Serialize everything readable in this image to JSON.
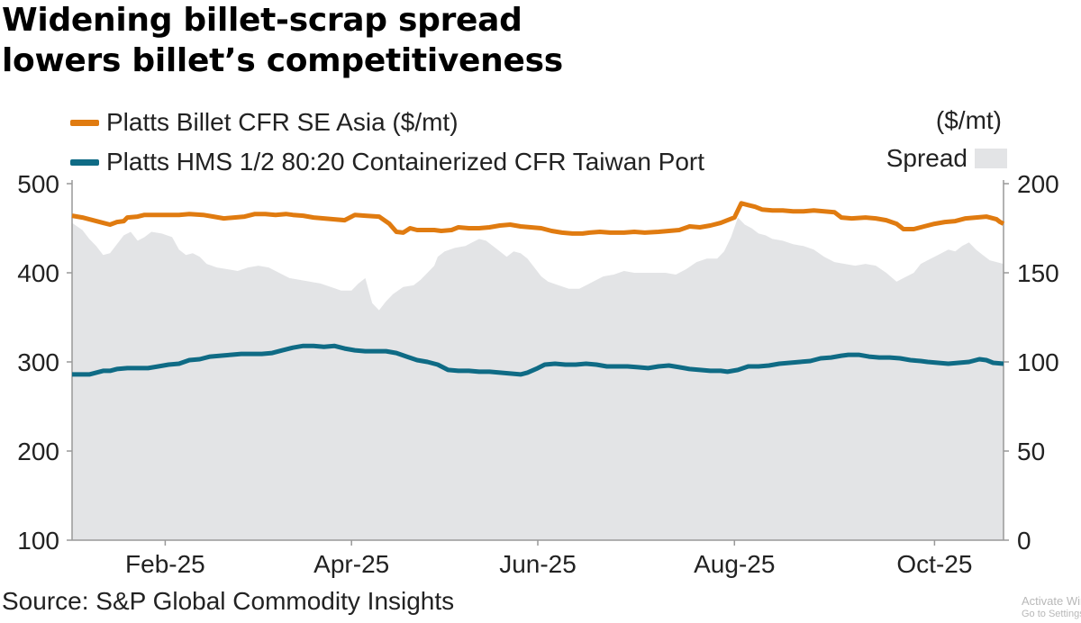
{
  "title_line1": "Widening billet-scrap spread",
  "title_line2": "lowers billet’s competitiveness",
  "legend": {
    "billet_label": "Platts Billet CFR SE Asia ($/mt)",
    "hms_label": "Platts HMS 1/2 80:20 Containerized CFR Taiwan Port",
    "spread_label": "Spread",
    "right_unit": "($/mt)"
  },
  "colors": {
    "billet": "#e07b10",
    "hms": "#0f6b85",
    "spread": "#e3e4e6",
    "axis": "#999999"
  },
  "source": "Source: S&P Global Commodity Insights",
  "watermark": {
    "line1": "Activate Windows",
    "line2": "Go to Settings to activate Windows."
  },
  "chart_data": {
    "type": "line",
    "title": "Widening billet-scrap spread lowers billet’s competitiveness",
    "x_range": [
      0,
      270
    ],
    "x_ticks": [
      {
        "x": 27,
        "label": "Feb-25"
      },
      {
        "x": 81,
        "label": "Apr-25"
      },
      {
        "x": 135,
        "label": "Jun-25"
      },
      {
        "x": 192,
        "label": "Aug-25"
      },
      {
        "x": 250,
        "label": "Oct-25"
      }
    ],
    "y_left": {
      "label": "$/mt",
      "range": [
        100,
        500
      ],
      "ticks": [
        500,
        400,
        300,
        200,
        100
      ]
    },
    "y_right": {
      "label": "($/mt)",
      "range": [
        0,
        200
      ],
      "ticks": [
        200,
        150,
        100,
        50,
        0
      ]
    },
    "series": [
      {
        "name": "Platts Billet CFR SE Asia ($/mt)",
        "kind": "line",
        "axis": "left",
        "points": [
          [
            0,
            464
          ],
          [
            3,
            462
          ],
          [
            6,
            459
          ],
          [
            9,
            456
          ],
          [
            11,
            454
          ],
          [
            13,
            457
          ],
          [
            15,
            458
          ],
          [
            16,
            462
          ],
          [
            19,
            463
          ],
          [
            21,
            465
          ],
          [
            25,
            465
          ],
          [
            31,
            465
          ],
          [
            34,
            466
          ],
          [
            38,
            465
          ],
          [
            41,
            463
          ],
          [
            44,
            461
          ],
          [
            47,
            462
          ],
          [
            50,
            463
          ],
          [
            53,
            466
          ],
          [
            56,
            466
          ],
          [
            59,
            465
          ],
          [
            62,
            466
          ],
          [
            64,
            465
          ],
          [
            67,
            464
          ],
          [
            70,
            462
          ],
          [
            73,
            461
          ],
          [
            76,
            460
          ],
          [
            79,
            459
          ],
          [
            82,
            465
          ],
          [
            85,
            464
          ],
          [
            89,
            463
          ],
          [
            92,
            455
          ],
          [
            94,
            446
          ],
          [
            96,
            445
          ],
          [
            98,
            450
          ],
          [
            100,
            448
          ],
          [
            103,
            448
          ],
          [
            105,
            448
          ],
          [
            107,
            447
          ],
          [
            110,
            448
          ],
          [
            112,
            451
          ],
          [
            115,
            450
          ],
          [
            118,
            450
          ],
          [
            121,
            451
          ],
          [
            124,
            453
          ],
          [
            127,
            454
          ],
          [
            130,
            452
          ],
          [
            133,
            451
          ],
          [
            136,
            450
          ],
          [
            139,
            447
          ],
          [
            142,
            445
          ],
          [
            145,
            444
          ],
          [
            148,
            444
          ],
          [
            150,
            445
          ],
          [
            153,
            446
          ],
          [
            156,
            445
          ],
          [
            160,
            445
          ],
          [
            163,
            446
          ],
          [
            166,
            445
          ],
          [
            170,
            446
          ],
          [
            173,
            447
          ],
          [
            176,
            448
          ],
          [
            179,
            452
          ],
          [
            182,
            451
          ],
          [
            185,
            453
          ],
          [
            188,
            456
          ],
          [
            190,
            459
          ],
          [
            192,
            462
          ],
          [
            194,
            478
          ],
          [
            196,
            476
          ],
          [
            198,
            474
          ],
          [
            200,
            471
          ],
          [
            203,
            470
          ],
          [
            206,
            470
          ],
          [
            209,
            469
          ],
          [
            212,
            469
          ],
          [
            215,
            470
          ],
          [
            218,
            469
          ],
          [
            221,
            468
          ],
          [
            223,
            462
          ],
          [
            226,
            461
          ],
          [
            230,
            462
          ],
          [
            233,
            461
          ],
          [
            236,
            459
          ],
          [
            239,
            455
          ],
          [
            241,
            449
          ],
          [
            244,
            449
          ],
          [
            247,
            452
          ],
          [
            250,
            455
          ],
          [
            253,
            457
          ],
          [
            256,
            458
          ],
          [
            259,
            461
          ],
          [
            262,
            462
          ],
          [
            265,
            463
          ],
          [
            268,
            460
          ],
          [
            269,
            457
          ],
          [
            270,
            455
          ]
        ]
      },
      {
        "name": "Platts HMS 1/2 80:20 Containerized CFR Taiwan Port",
        "kind": "line",
        "axis": "left",
        "points": [
          [
            0,
            286
          ],
          [
            3,
            286
          ],
          [
            5,
            286
          ],
          [
            7,
            288
          ],
          [
            9,
            290
          ],
          [
            11,
            290
          ],
          [
            13,
            292
          ],
          [
            16,
            293
          ],
          [
            19,
            293
          ],
          [
            22,
            293
          ],
          [
            25,
            295
          ],
          [
            28,
            297
          ],
          [
            31,
            298
          ],
          [
            34,
            302
          ],
          [
            37,
            303
          ],
          [
            40,
            306
          ],
          [
            43,
            307
          ],
          [
            46,
            308
          ],
          [
            49,
            309
          ],
          [
            52,
            309
          ],
          [
            55,
            309
          ],
          [
            58,
            310
          ],
          [
            61,
            313
          ],
          [
            64,
            316
          ],
          [
            67,
            318
          ],
          [
            70,
            318
          ],
          [
            73,
            317
          ],
          [
            76,
            318
          ],
          [
            79,
            315
          ],
          [
            82,
            313
          ],
          [
            85,
            312
          ],
          [
            88,
            312
          ],
          [
            91,
            312
          ],
          [
            94,
            310
          ],
          [
            97,
            306
          ],
          [
            100,
            302
          ],
          [
            103,
            300
          ],
          [
            106,
            297
          ],
          [
            109,
            291
          ],
          [
            112,
            290
          ],
          [
            115,
            290
          ],
          [
            118,
            289
          ],
          [
            121,
            289
          ],
          [
            124,
            288
          ],
          [
            127,
            287
          ],
          [
            130,
            286
          ],
          [
            132,
            288
          ],
          [
            135,
            293
          ],
          [
            137,
            297
          ],
          [
            140,
            298
          ],
          [
            143,
            297
          ],
          [
            146,
            297
          ],
          [
            149,
            298
          ],
          [
            152,
            297
          ],
          [
            155,
            295
          ],
          [
            158,
            295
          ],
          [
            161,
            295
          ],
          [
            164,
            294
          ],
          [
            167,
            293
          ],
          [
            170,
            295
          ],
          [
            173,
            296
          ],
          [
            176,
            294
          ],
          [
            179,
            292
          ],
          [
            182,
            291
          ],
          [
            185,
            290
          ],
          [
            188,
            290
          ],
          [
            190,
            289
          ],
          [
            193,
            291
          ],
          [
            196,
            295
          ],
          [
            199,
            295
          ],
          [
            202,
            296
          ],
          [
            205,
            298
          ],
          [
            208,
            299
          ],
          [
            211,
            300
          ],
          [
            214,
            301
          ],
          [
            217,
            304
          ],
          [
            220,
            305
          ],
          [
            223,
            307
          ],
          [
            225,
            308
          ],
          [
            228,
            308
          ],
          [
            231,
            306
          ],
          [
            234,
            305
          ],
          [
            237,
            305
          ],
          [
            240,
            304
          ],
          [
            243,
            302
          ],
          [
            246,
            301
          ],
          [
            248,
            300
          ],
          [
            251,
            299
          ],
          [
            254,
            298
          ],
          [
            257,
            299
          ],
          [
            260,
            300
          ],
          [
            263,
            303
          ],
          [
            265,
            302
          ],
          [
            267,
            299
          ],
          [
            270,
            298
          ]
        ]
      },
      {
        "name": "Spread",
        "kind": "area",
        "axis": "right",
        "points": [
          [
            0,
            178
          ],
          [
            3,
            174
          ],
          [
            5,
            169
          ],
          [
            7,
            165
          ],
          [
            9,
            160
          ],
          [
            11,
            161
          ],
          [
            13,
            166
          ],
          [
            15,
            171
          ],
          [
            17,
            173
          ],
          [
            19,
            168
          ],
          [
            21,
            170
          ],
          [
            23,
            173
          ],
          [
            26,
            172
          ],
          [
            29,
            170
          ],
          [
            31,
            163
          ],
          [
            33,
            160
          ],
          [
            35,
            161
          ],
          [
            37,
            159
          ],
          [
            39,
            155
          ],
          [
            42,
            153
          ],
          [
            45,
            152
          ],
          [
            48,
            151
          ],
          [
            51,
            153
          ],
          [
            54,
            154
          ],
          [
            57,
            153
          ],
          [
            60,
            150
          ],
          [
            63,
            147
          ],
          [
            66,
            146
          ],
          [
            69,
            145
          ],
          [
            72,
            144
          ],
          [
            75,
            142
          ],
          [
            78,
            140
          ],
          [
            81,
            140
          ],
          [
            83,
            144
          ],
          [
            85,
            147
          ],
          [
            86,
            140
          ],
          [
            87,
            133
          ],
          [
            89,
            129
          ],
          [
            91,
            134
          ],
          [
            93,
            138
          ],
          [
            96,
            142
          ],
          [
            99,
            143
          ],
          [
            101,
            146
          ],
          [
            103,
            150
          ],
          [
            105,
            154
          ],
          [
            106,
            159
          ],
          [
            108,
            162
          ],
          [
            111,
            164
          ],
          [
            114,
            165
          ],
          [
            116,
            167
          ],
          [
            118,
            169
          ],
          [
            120,
            168
          ],
          [
            122,
            165
          ],
          [
            124,
            162
          ],
          [
            126,
            159
          ],
          [
            128,
            162
          ],
          [
            130,
            161
          ],
          [
            132,
            158
          ],
          [
            134,
            153
          ],
          [
            136,
            148
          ],
          [
            138,
            145
          ],
          [
            141,
            143
          ],
          [
            144,
            141
          ],
          [
            147,
            141
          ],
          [
            149,
            143
          ],
          [
            151,
            145
          ],
          [
            154,
            148
          ],
          [
            157,
            149
          ],
          [
            160,
            151
          ],
          [
            163,
            150
          ],
          [
            166,
            150
          ],
          [
            169,
            150
          ],
          [
            172,
            150
          ],
          [
            175,
            149
          ],
          [
            178,
            152
          ],
          [
            181,
            156
          ],
          [
            184,
            158
          ],
          [
            187,
            158
          ],
          [
            189,
            162
          ],
          [
            191,
            170
          ],
          [
            193,
            181
          ],
          [
            195,
            177
          ],
          [
            197,
            175
          ],
          [
            199,
            172
          ],
          [
            201,
            171
          ],
          [
            203,
            169
          ],
          [
            206,
            168
          ],
          [
            209,
            166
          ],
          [
            212,
            165
          ],
          [
            215,
            163
          ],
          [
            218,
            159
          ],
          [
            221,
            156
          ],
          [
            224,
            155
          ],
          [
            227,
            154
          ],
          [
            230,
            155
          ],
          [
            233,
            154
          ],
          [
            236,
            150
          ],
          [
            239,
            145
          ],
          [
            241,
            147
          ],
          [
            244,
            150
          ],
          [
            246,
            155
          ],
          [
            248,
            157
          ],
          [
            251,
            160
          ],
          [
            254,
            163
          ],
          [
            256,
            162
          ],
          [
            258,
            165
          ],
          [
            260,
            167
          ],
          [
            262,
            163
          ],
          [
            264,
            160
          ],
          [
            266,
            157
          ],
          [
            268,
            156
          ],
          [
            270,
            155
          ]
        ]
      }
    ]
  }
}
